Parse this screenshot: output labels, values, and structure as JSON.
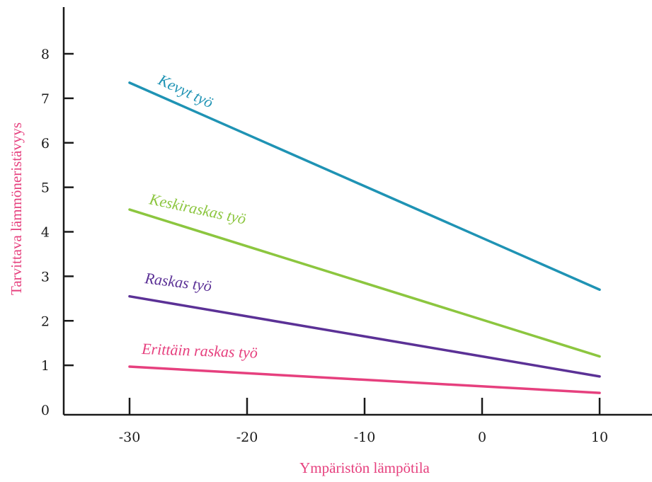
{
  "chart_data": {
    "type": "line",
    "xlabel": "Ympäristön lämpötila",
    "ylabel": "Tarvittava lämmöneristävyys",
    "xlim": [
      -35,
      14
    ],
    "ylim": [
      0,
      9
    ],
    "x_ticks": [
      -30,
      -20,
      -10,
      0,
      10
    ],
    "y_ticks": [
      0,
      1,
      2,
      3,
      4,
      5,
      6,
      7,
      8
    ],
    "label_color": "#e6407e",
    "series": [
      {
        "name": "Kevyt työ",
        "color": "#1f93b4",
        "x": [
          -30,
          10
        ],
        "values": [
          7.35,
          2.7
        ]
      },
      {
        "name": "Keskiraskas työ",
        "color": "#8cc63f",
        "x": [
          -30,
          10
        ],
        "values": [
          4.5,
          1.2
        ]
      },
      {
        "name": "Raskas työ",
        "color": "#5b3196",
        "x": [
          -30,
          10
        ],
        "values": [
          2.55,
          0.75
        ]
      },
      {
        "name": "Erittäin raskas työ",
        "color": "#e6407e",
        "x": [
          -30,
          10
        ],
        "values": [
          0.97,
          0.38
        ]
      }
    ]
  }
}
